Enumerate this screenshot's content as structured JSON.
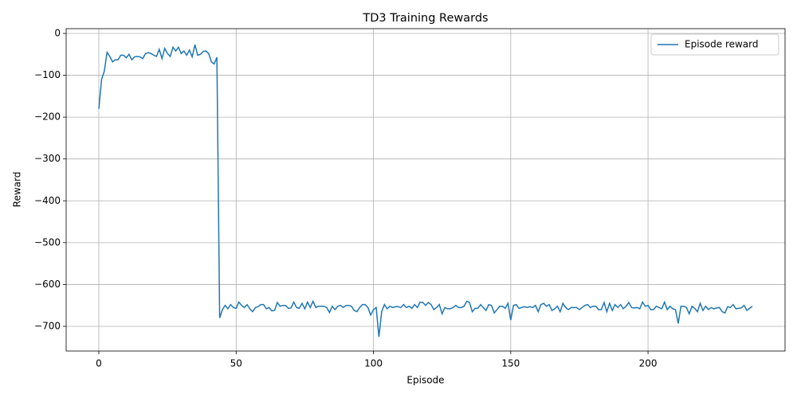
{
  "chart_data": {
    "type": "line",
    "title": "TD3 Training Rewards",
    "x_label": "Episode",
    "y_label": "Reward",
    "x": [
      0,
      1,
      2,
      3,
      4,
      5,
      6,
      7,
      8,
      9,
      10,
      11,
      12,
      13,
      14,
      15,
      16,
      17,
      18,
      19,
      20,
      21,
      22,
      23,
      24,
      25,
      26,
      27,
      28,
      29,
      30,
      31,
      32,
      33,
      34,
      35,
      36,
      37,
      38,
      39,
      40,
      41,
      42,
      43,
      44,
      45,
      46,
      47,
      48,
      49,
      50,
      51,
      52,
      53,
      54,
      55,
      56,
      57,
      58,
      59,
      60,
      61,
      62,
      63,
      64,
      65,
      66,
      67,
      68,
      69,
      70,
      71,
      72,
      73,
      74,
      75,
      76,
      77,
      78,
      79,
      80,
      81,
      82,
      83,
      84,
      85,
      86,
      87,
      88,
      89,
      90,
      91,
      92,
      93,
      94,
      95,
      96,
      97,
      98,
      99,
      100,
      101,
      102,
      103,
      104,
      105,
      106,
      107,
      108,
      109,
      110,
      111,
      112,
      113,
      114,
      115,
      116,
      117,
      118,
      119,
      120,
      121,
      122,
      123,
      124,
      125,
      126,
      127,
      128,
      129,
      130,
      131,
      132,
      133,
      134,
      135,
      136,
      137,
      138,
      139,
      140,
      141,
      142,
      143,
      144,
      145,
      146,
      147,
      148,
      149,
      150,
      151,
      152,
      153,
      154,
      155,
      156,
      157,
      158,
      159,
      160,
      161,
      162,
      163,
      164,
      165,
      166,
      167,
      168,
      169,
      170,
      171,
      172,
      173,
      174,
      175,
      176,
      177,
      178,
      179,
      180,
      181,
      182,
      183,
      184,
      185,
      186,
      187,
      188,
      189,
      190,
      191,
      192,
      193,
      194,
      195,
      196,
      197,
      198,
      199,
      200,
      201,
      202,
      203,
      204,
      205,
      206,
      207,
      208,
      209,
      210,
      211,
      212,
      213,
      214,
      215,
      216,
      217,
      218,
      219,
      220,
      221,
      222,
      223,
      224,
      225,
      226,
      227,
      228,
      229,
      230,
      231,
      232,
      233,
      234,
      235,
      236,
      237,
      238
    ],
    "series": [
      {
        "name": "Episode reward",
        "color": "#1f77b4",
        "values": [
          -180,
          -110,
          -90,
          -45,
          -55,
          -68,
          -63,
          -63,
          -52,
          -52,
          -58,
          -50,
          -63,
          -56,
          -55,
          -56,
          -60,
          -48,
          -46,
          -48,
          -52,
          -55,
          -38,
          -60,
          -36,
          -48,
          -55,
          -33,
          -42,
          -33,
          -48,
          -42,
          -52,
          -40,
          -56,
          -27,
          -52,
          -50,
          -43,
          -42,
          -48,
          -68,
          -73,
          -57,
          -680,
          -660,
          -650,
          -658,
          -648,
          -655,
          -657,
          -642,
          -650,
          -655,
          -648,
          -658,
          -665,
          -655,
          -653,
          -648,
          -648,
          -658,
          -655,
          -663,
          -662,
          -643,
          -652,
          -650,
          -650,
          -657,
          -656,
          -642,
          -655,
          -657,
          -645,
          -658,
          -642,
          -655,
          -640,
          -655,
          -652,
          -652,
          -652,
          -655,
          -667,
          -652,
          -660,
          -652,
          -650,
          -655,
          -650,
          -650,
          -652,
          -662,
          -665,
          -655,
          -648,
          -648,
          -655,
          -673,
          -660,
          -655,
          -725,
          -665,
          -648,
          -658,
          -652,
          -655,
          -653,
          -653,
          -655,
          -648,
          -655,
          -652,
          -657,
          -648,
          -655,
          -642,
          -643,
          -650,
          -643,
          -648,
          -660,
          -655,
          -648,
          -670,
          -655,
          -658,
          -658,
          -655,
          -650,
          -655,
          -655,
          -652,
          -640,
          -643,
          -665,
          -657,
          -657,
          -648,
          -655,
          -662,
          -648,
          -650,
          -668,
          -660,
          -652,
          -652,
          -657,
          -645,
          -685,
          -650,
          -648,
          -657,
          -655,
          -653,
          -655,
          -653,
          -655,
          -650,
          -665,
          -648,
          -645,
          -652,
          -648,
          -662,
          -658,
          -652,
          -665,
          -645,
          -655,
          -660,
          -655,
          -655,
          -655,
          -660,
          -655,
          -650,
          -648,
          -655,
          -652,
          -652,
          -660,
          -660,
          -643,
          -665,
          -645,
          -662,
          -648,
          -655,
          -648,
          -658,
          -652,
          -643,
          -655,
          -656,
          -655,
          -658,
          -642,
          -652,
          -650,
          -660,
          -660,
          -652,
          -655,
          -658,
          -642,
          -660,
          -652,
          -658,
          -660,
          -693,
          -652,
          -652,
          -655,
          -670,
          -652,
          -657,
          -665,
          -645,
          -662,
          -652,
          -660,
          -655,
          -658,
          -656,
          -655,
          -665,
          -668,
          -653,
          -655,
          -648,
          -658,
          -657,
          -656,
          -650,
          -662,
          -657,
          -652
        ]
      }
    ],
    "xlim": [
      -11.9,
      249.9
    ],
    "ylim": [
      -759,
      11.4
    ],
    "xticks": [
      0,
      50,
      100,
      150,
      200
    ],
    "yticks": [
      0,
      {
        "value": -100,
        "label": "−100"
      },
      {
        "value": -200,
        "label": "−200"
      },
      {
        "value": -300,
        "label": "−300"
      },
      {
        "value": -400,
        "label": "−400"
      },
      {
        "value": -500,
        "label": "−500"
      },
      {
        "value": -600,
        "label": "−600"
      },
      {
        "value": -700,
        "label": "−700"
      }
    ],
    "grid": true,
    "legend": "upper-right"
  }
}
